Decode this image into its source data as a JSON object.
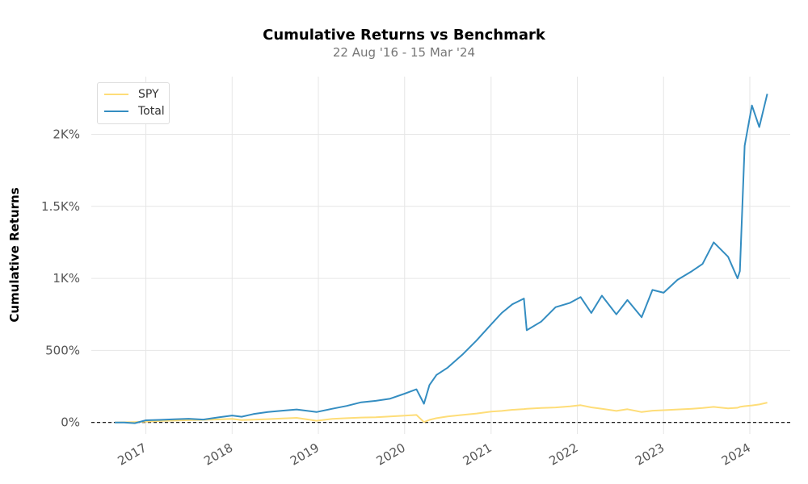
{
  "chart_data": {
    "type": "line",
    "title": "Cumulative Returns vs Benchmark",
    "subtitle": "22 Aug '16 - 15 Mar '24",
    "xlabel": "",
    "ylabel": "Cumulative Returns",
    "x_tick_labels": [
      "2017",
      "2018",
      "2019",
      "2020",
      "2021",
      "2022",
      "2023",
      "2024"
    ],
    "y_tick_labels": [
      "0%",
      "500%",
      "1K%",
      "1.5K%",
      "2K%"
    ],
    "y_ticks": [
      0,
      500,
      1000,
      1500,
      2000
    ],
    "xlim": [
      "2016-05-15",
      "2024-06-20"
    ],
    "ylim": [
      -80,
      2400
    ],
    "grid": true,
    "legend_position": "top-left",
    "baseline": 0,
    "x": [
      "2016-08-22",
      "2016-10-01",
      "2016-11-15",
      "2017-01-01",
      "2017-03-01",
      "2017-05-01",
      "2017-07-01",
      "2017-09-01",
      "2017-11-01",
      "2018-01-01",
      "2018-02-10",
      "2018-04-01",
      "2018-06-01",
      "2018-08-01",
      "2018-10-01",
      "2018-12-24",
      "2019-03-01",
      "2019-05-01",
      "2019-07-01",
      "2019-09-01",
      "2019-11-01",
      "2020-01-01",
      "2020-02-20",
      "2020-03-23",
      "2020-04-15",
      "2020-05-15",
      "2020-07-01",
      "2020-09-01",
      "2020-11-01",
      "2021-01-01",
      "2021-02-15",
      "2021-04-01",
      "2021-05-20",
      "2021-06-01",
      "2021-08-01",
      "2021-10-01",
      "2021-12-01",
      "2022-01-15",
      "2022-03-01",
      "2022-04-15",
      "2022-06-15",
      "2022-08-01",
      "2022-09-30",
      "2022-11-15",
      "2023-01-01",
      "2023-03-01",
      "2023-05-01",
      "2023-06-15",
      "2023-08-01",
      "2023-10-01",
      "2023-11-10",
      "2023-11-20",
      "2023-12-10",
      "2024-01-10",
      "2024-02-10",
      "2024-03-15"
    ],
    "series": [
      {
        "name": "SPY",
        "color": "#fedd78",
        "values": [
          0,
          1,
          3,
          6,
          10,
          13,
          16,
          18,
          21,
          25,
          17,
          19,
          23,
          28,
          32,
          12,
          25,
          30,
          34,
          36,
          42,
          47,
          52,
          3,
          18,
          30,
          42,
          52,
          62,
          75,
          80,
          88,
          93,
          95,
          100,
          104,
          112,
          120,
          105,
          95,
          80,
          92,
          72,
          82,
          85,
          90,
          95,
          100,
          108,
          98,
          102,
          108,
          113,
          118,
          125,
          138
        ]
      },
      {
        "name": "Total",
        "color": "#348dc1",
        "values": [
          0,
          0,
          -5,
          15,
          18,
          22,
          26,
          20,
          35,
          48,
          40,
          58,
          72,
          82,
          90,
          72,
          95,
          115,
          140,
          150,
          165,
          200,
          230,
          130,
          260,
          330,
          380,
          470,
          570,
          680,
          760,
          820,
          860,
          640,
          700,
          800,
          830,
          870,
          760,
          880,
          750,
          850,
          730,
          920,
          900,
          990,
          1050,
          1100,
          1250,
          1150,
          1000,
          1050,
          1920,
          2200,
          2050,
          2280
        ]
      }
    ]
  }
}
